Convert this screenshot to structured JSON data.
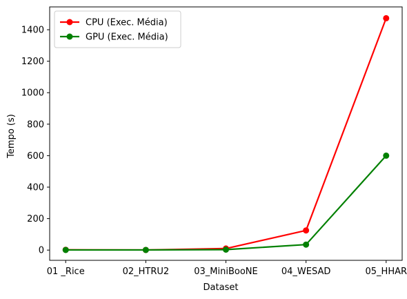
{
  "chart_data": {
    "type": "line",
    "title": "",
    "xlabel": "Dataset",
    "ylabel": "Tempo (s)",
    "categories": [
      "01 _Rice",
      "02_HTRU2",
      "03_MiniBooNE",
      "04_WESAD",
      "05_HHAR"
    ],
    "yticks": [
      0,
      200,
      400,
      600,
      800,
      1000,
      1200,
      1400
    ],
    "ylim": [
      -65,
      1545
    ],
    "grid": false,
    "legend_position": "top-left",
    "series": [
      {
        "name": "CPU (Exec. Média)",
        "color": "#ff0000",
        "values": [
          2,
          1,
          10,
          125,
          1473
        ]
      },
      {
        "name": "GPU (Exec. Média)",
        "color": "#008000",
        "values": [
          1,
          1,
          3,
          35,
          600
        ]
      }
    ]
  }
}
